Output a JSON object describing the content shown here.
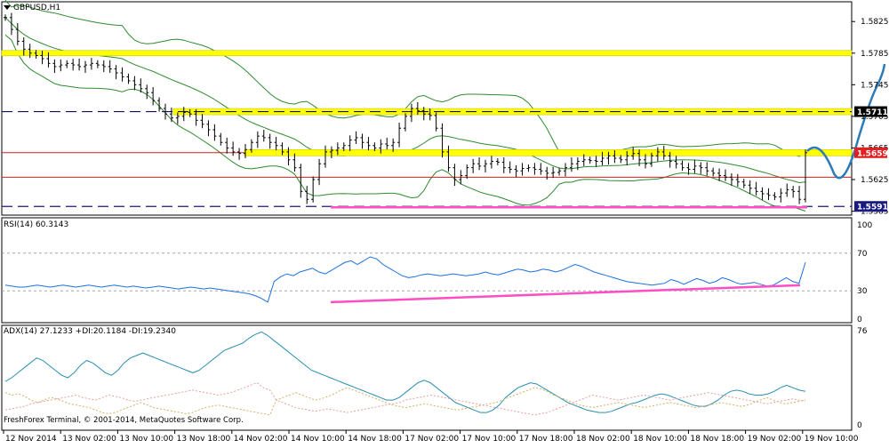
{
  "header": {
    "symbol": "GBPUSD,H1",
    "rsi_label": "RSI(14) 60.3143",
    "adx_label": "ADX(14) 27.1233 +DI:20.1184 -DI:19.2340",
    "copyright": "FreshForex Terminal, © 2001-2014, MetaQuotes Software Corp."
  },
  "colors": {
    "candle": "#000000",
    "bollinger": "#2e8b2e",
    "support_zone": "#ffff00",
    "support_zone_edge": "#c8c800",
    "pivot_line": "#1a1a80",
    "red_line": "#d02020",
    "pink_line": "#ff4dc4",
    "blue_curve": "#2b7bb9",
    "rsi_line": "#1e6fe0",
    "adx_line": "#2a8fb0",
    "di_plus": "#d4b060",
    "di_minus": "#e6a0a0"
  },
  "chart_data": [
    {
      "type": "candlestick",
      "title": "GBPUSD,H1",
      "y_ticks": [
        "1.5825",
        "1.5785",
        "1.5745",
        "1.5705",
        "1.5665",
        "1.5625",
        "1.5585"
      ],
      "ylim": [
        1.558,
        1.585
      ],
      "x_labels": [
        "12 Nov 2014",
        "13 Nov 02:00",
        "13 Nov 10:00",
        "13 Nov 18:00",
        "14 Nov 02:00",
        "14 Nov 10:00",
        "14 Nov 18:00",
        "17 Nov 02:00",
        "17 Nov 10:00",
        "17 Nov 18:00",
        "18 Nov 02:00",
        "18 Nov 10:00",
        "18 Nov 18:00",
        "19 Nov 02:00",
        "19 Nov 10:00"
      ],
      "closes": [
        1.583,
        1.5815,
        1.58,
        1.579,
        1.5785,
        1.5782,
        1.5778,
        1.5772,
        1.5768,
        1.577,
        1.5772,
        1.577,
        1.5768,
        1.577,
        1.5772,
        1.577,
        1.5768,
        1.5765,
        1.576,
        1.5755,
        1.575,
        1.5745,
        1.574,
        1.5735,
        1.5725,
        1.5715,
        1.5708,
        1.5703,
        1.5705,
        1.571,
        1.5708,
        1.57,
        1.5695,
        1.5688,
        1.568,
        1.5672,
        1.5665,
        1.566,
        1.5658,
        1.5663,
        1.5672,
        1.568,
        1.5678,
        1.5672,
        1.5668,
        1.566,
        1.565,
        1.564,
        1.561,
        1.56,
        1.5625,
        1.5645,
        1.566,
        1.5662,
        1.5665,
        1.5668,
        1.5675,
        1.5678,
        1.5672,
        1.5668,
        1.5665,
        1.567,
        1.5668,
        1.5672,
        1.569,
        1.5705,
        1.5715,
        1.5712,
        1.5708,
        1.5706,
        1.569,
        1.566,
        1.564,
        1.5625,
        1.563,
        1.564,
        1.5645,
        1.5642,
        1.5645,
        1.5648,
        1.5647,
        1.564,
        1.5638,
        1.5636,
        1.5639,
        1.564,
        1.5638,
        1.5636,
        1.5633,
        1.5634,
        1.5636,
        1.564,
        1.5645,
        1.5648,
        1.565,
        1.5649,
        1.5648,
        1.5652,
        1.5655,
        1.5652,
        1.565,
        1.5655,
        1.5658,
        1.565,
        1.5645,
        1.5655,
        1.566,
        1.5655,
        1.5648,
        1.5645,
        1.564,
        1.5638,
        1.5642,
        1.564,
        1.5636,
        1.5633,
        1.563,
        1.5628,
        1.5625,
        1.5622,
        1.5618,
        1.5614,
        1.561,
        1.5607,
        1.5605,
        1.5603,
        1.5608,
        1.5612,
        1.561,
        1.56,
        1.5659
      ],
      "horizontal_levels": [
        {
          "label": "1.5711",
          "price": 1.5711,
          "kind": "support_zone"
        },
        {
          "label": "1.5659",
          "price": 1.5659,
          "kind": "support_zone"
        },
        {
          "label": "1.5591",
          "price": 1.5591,
          "kind": "pivot"
        },
        {
          "label": "",
          "price": 1.5628,
          "kind": "red"
        }
      ],
      "grid": false
    },
    {
      "type": "line",
      "title": "RSI(14) 60.3143",
      "y_ticks": [
        "100",
        "70",
        "30",
        "0"
      ],
      "ylim": [
        0,
        100
      ],
      "levels": [
        70,
        30
      ],
      "last_value": 60.3143,
      "values": [
        36,
        35,
        34,
        34,
        35,
        36,
        35,
        34,
        35,
        36,
        35,
        34,
        35,
        36,
        35,
        34,
        35,
        36,
        35,
        34,
        35,
        34,
        33,
        34,
        35,
        34,
        33,
        32,
        33,
        34,
        33,
        32,
        33,
        32,
        31,
        30,
        29,
        28,
        27,
        25,
        22,
        18,
        40,
        45,
        48,
        46,
        50,
        52,
        54,
        50,
        48,
        52,
        56,
        60,
        62,
        58,
        62,
        66,
        64,
        58,
        54,
        50,
        46,
        44,
        45,
        47,
        48,
        47,
        46,
        47,
        48,
        47,
        46,
        47,
        48,
        50,
        48,
        47,
        49,
        51,
        53,
        52,
        50,
        51,
        53,
        52,
        50,
        52,
        55,
        58,
        56,
        53,
        50,
        48,
        46,
        44,
        42,
        40,
        39,
        38,
        37,
        36,
        37,
        38,
        42,
        40,
        37,
        40,
        43,
        41,
        38,
        40,
        44,
        42,
        39,
        37,
        38,
        39,
        37,
        35,
        36,
        40,
        44,
        40,
        38,
        60.31
      ]
    },
    {
      "type": "line",
      "title": "ADX(14) 27.1233 +DI:20.1184 -DI:19.2340",
      "y_ticks": [
        "76",
        "0"
      ],
      "ylim": [
        0,
        76
      ],
      "series": [
        {
          "name": "ADX(14)",
          "last_value": 27.1233,
          "values": [
            35,
            38,
            42,
            46,
            50,
            54,
            52,
            48,
            44,
            40,
            38,
            42,
            48,
            52,
            50,
            46,
            42,
            40,
            44,
            50,
            54,
            56,
            58,
            56,
            54,
            52,
            50,
            48,
            46,
            44,
            42,
            44,
            48,
            52,
            56,
            60,
            62,
            64,
            66,
            70,
            73,
            75,
            72,
            68,
            64,
            60,
            56,
            52,
            48,
            44,
            42,
            40,
            38,
            36,
            34,
            32,
            30,
            28,
            26,
            24,
            22,
            20,
            20,
            22,
            26,
            30,
            34,
            36,
            34,
            30,
            26,
            22,
            18,
            16,
            14,
            12,
            10,
            10,
            12,
            16,
            22,
            26,
            30,
            32,
            34,
            33,
            30,
            27,
            24,
            21,
            18,
            16,
            14,
            12,
            11,
            10,
            10,
            11,
            13,
            15,
            17,
            18,
            20,
            22,
            24,
            25,
            24,
            22,
            20,
            18,
            16,
            15,
            15,
            17,
            20,
            24,
            27,
            28,
            27,
            25,
            24,
            24,
            25,
            27,
            30,
            32,
            30,
            28,
            27.12
          ]
        },
        {
          "name": "+DI",
          "last_value": 20.1184,
          "values": [
            26,
            24,
            25,
            23,
            20,
            18,
            20,
            22,
            21,
            19,
            17,
            16,
            15,
            14,
            12,
            10,
            9,
            10,
            12,
            14,
            16,
            18,
            16,
            14,
            13,
            12,
            11,
            10,
            9,
            10,
            12,
            14,
            15,
            16,
            15,
            14,
            13,
            12,
            11,
            10,
            9,
            8,
            20,
            22,
            24,
            26,
            24,
            22,
            20,
            21,
            23,
            25,
            28,
            30,
            28,
            26,
            24,
            22,
            20,
            18,
            16,
            15,
            14,
            15,
            16,
            17,
            16,
            15,
            14,
            13,
            12,
            13,
            14,
            15,
            16,
            17,
            18,
            20,
            22,
            24,
            26,
            28,
            30,
            29,
            27,
            24,
            22,
            20,
            18,
            16,
            15,
            14,
            15,
            16,
            17,
            18,
            17,
            16,
            15,
            14,
            15,
            16,
            17,
            18,
            17,
            16,
            15,
            14,
            15,
            16,
            17,
            18,
            17,
            16,
            15,
            16,
            18,
            20,
            22,
            20,
            18,
            17,
            18,
            19,
            20.12
          ]
        },
        {
          "name": "-DI",
          "last_value": 19.234,
          "values": [
            12,
            13,
            14,
            15,
            17,
            18,
            19,
            20,
            21,
            22,
            23,
            24,
            22,
            21,
            20,
            22,
            24,
            23,
            22,
            20,
            19,
            20,
            21,
            22,
            23,
            24,
            25,
            26,
            27,
            28,
            27,
            26,
            25,
            24,
            25,
            26,
            28,
            30,
            32,
            34,
            30,
            28,
            20,
            18,
            16,
            14,
            13,
            12,
            11,
            12,
            13,
            12,
            11,
            10,
            11,
            12,
            13,
            14,
            15,
            16,
            17,
            18,
            20,
            21,
            22,
            23,
            24,
            23,
            22,
            21,
            20,
            19,
            18,
            17,
            16,
            15,
            14,
            13,
            12,
            11,
            10,
            9,
            8,
            9,
            10,
            12,
            14,
            16,
            18,
            20,
            22,
            24,
            23,
            22,
            21,
            20,
            21,
            22,
            23,
            24,
            23,
            22,
            21,
            20,
            21,
            22,
            23,
            24,
            25,
            26,
            25,
            24,
            23,
            22,
            21,
            20,
            19,
            18,
            17,
            18,
            19,
            20,
            21,
            20,
            19.23
          ]
        }
      ]
    }
  ]
}
